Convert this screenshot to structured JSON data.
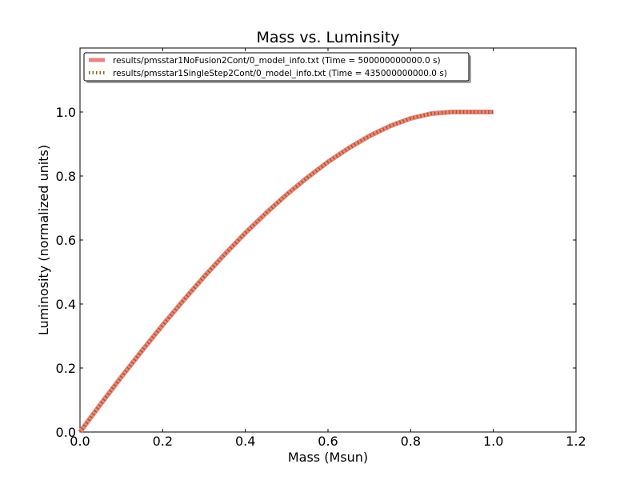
{
  "chart_data": {
    "type": "line",
    "title": "Mass vs. Luminsity",
    "xlabel": "Mass (Msun)",
    "ylabel": "Luminosity (normalized units)",
    "xlim": [
      0.0,
      1.2
    ],
    "ylim": [
      0.0,
      1.2
    ],
    "xticks": [
      "0.0",
      "0.2",
      "0.4",
      "0.6",
      "0.8",
      "1.0",
      "1.2"
    ],
    "yticks": [
      "0.0",
      "0.2",
      "0.4",
      "0.6",
      "0.8",
      "1.0"
    ],
    "grid": false,
    "legend_position": "top-left",
    "series": [
      {
        "name": "results/pmsstar1NoFusion2Cont/0_model_info.txt (Time = 500000000000.0 s)",
        "style": "solid",
        "color": "#f08080",
        "x": [
          0.0,
          0.05,
          0.1,
          0.15,
          0.2,
          0.25,
          0.3,
          0.35,
          0.4,
          0.45,
          0.5,
          0.55,
          0.6,
          0.65,
          0.7,
          0.75,
          0.8,
          0.85,
          0.9,
          0.95,
          1.0
        ],
        "y": [
          0.0,
          0.087,
          0.172,
          0.254,
          0.334,
          0.411,
          0.485,
          0.555,
          0.622,
          0.684,
          0.742,
          0.795,
          0.844,
          0.887,
          0.925,
          0.956,
          0.98,
          0.995,
          1.0,
          1.0,
          1.0
        ]
      },
      {
        "name": "results/pmsstar1SingleStep2Cont/0_model_info.txt (Time = 435000000000.0 s)",
        "style": "dotted",
        "color": "#8b6914",
        "x": [
          0.0,
          0.05,
          0.1,
          0.15,
          0.2,
          0.25,
          0.3,
          0.35,
          0.4,
          0.45,
          0.5,
          0.55,
          0.6,
          0.65,
          0.7,
          0.75,
          0.8,
          0.85,
          0.9,
          0.95,
          1.0
        ],
        "y": [
          0.0,
          0.087,
          0.172,
          0.254,
          0.334,
          0.411,
          0.485,
          0.555,
          0.622,
          0.684,
          0.742,
          0.795,
          0.844,
          0.887,
          0.925,
          0.956,
          0.98,
          0.995,
          1.0,
          1.0,
          1.0
        ]
      }
    ]
  }
}
